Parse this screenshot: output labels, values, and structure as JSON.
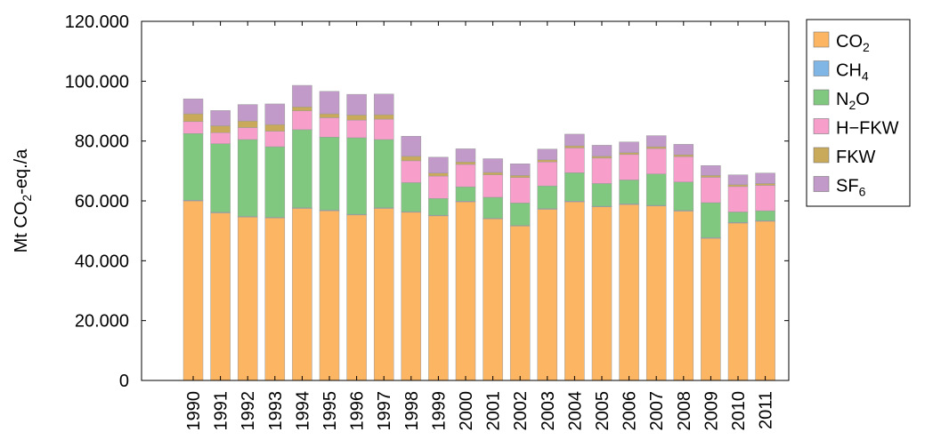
{
  "chart_data": {
    "type": "bar",
    "stacked": true,
    "title": "",
    "xlabel": "",
    "ylabel": "Mt CO",
    "ylabel_sub": "2",
    "ylabel_suffix": "-eq./a",
    "ylim": [
      0,
      120000
    ],
    "yticks": [
      0,
      20000,
      40000,
      60000,
      80000,
      100000,
      120000
    ],
    "ytick_labels": [
      "0",
      "20.000",
      "40.000",
      "60.000",
      "80.000",
      "100.000",
      "120.000"
    ],
    "grid": false,
    "legend_position": "outside-right",
    "categories": [
      "1990",
      "1991",
      "1992",
      "1993",
      "1994",
      "1995",
      "1996",
      "1997",
      "1998",
      "1999",
      "2000",
      "2001",
      "2002",
      "2003",
      "2004",
      "2005",
      "2006",
      "2007",
      "2008",
      "2009",
      "2010",
      "2011"
    ],
    "series": [
      {
        "name": "CO",
        "sub": "2",
        "suffix": "",
        "color": "#fcb663",
        "values": [
          60000,
          56000,
          54600,
          54300,
          57500,
          56700,
          55300,
          57500,
          56200,
          55000,
          59700,
          54000,
          51600,
          57200,
          59700,
          58000,
          58800,
          58300,
          56600,
          47500,
          52600,
          53200
        ]
      },
      {
        "name": "CH",
        "sub": "4",
        "suffix": "",
        "color": "#7fb6e6",
        "values": [
          200,
          200,
          200,
          200,
          200,
          200,
          200,
          200,
          200,
          200,
          200,
          200,
          200,
          200,
          200,
          200,
          200,
          200,
          200,
          200,
          200,
          200
        ]
      },
      {
        "name": "N",
        "sub": "2",
        "suffix": "O",
        "color": "#80c880",
        "values": [
          22300,
          22900,
          25700,
          23600,
          26100,
          24400,
          25600,
          22800,
          9700,
          5600,
          4800,
          7000,
          7500,
          7600,
          9500,
          7600,
          8000,
          10500,
          9500,
          11700,
          3500,
          3300
        ]
      },
      {
        "name": "H−FKW",
        "sub": "",
        "suffix": "",
        "color": "#f79ecb",
        "values": [
          4000,
          3700,
          4000,
          5200,
          6300,
          6500,
          5900,
          6800,
          7300,
          7500,
          7500,
          7500,
          8500,
          8000,
          8300,
          8500,
          8500,
          8500,
          8500,
          8500,
          8500,
          8500
        ]
      },
      {
        "name": "FKW",
        "sub": "",
        "suffix": "",
        "color": "#c8aa5a",
        "values": [
          2600,
          2300,
          2200,
          2200,
          1300,
          1300,
          1700,
          1500,
          1500,
          1000,
          800,
          800,
          700,
          700,
          700,
          600,
          600,
          600,
          600,
          600,
          600,
          600
        ]
      },
      {
        "name": "SF",
        "sub": "6",
        "suffix": "",
        "color": "#c29ac9",
        "values": [
          5000,
          5100,
          5500,
          6900,
          7200,
          7500,
          6900,
          6900,
          6700,
          5300,
          4400,
          4600,
          3900,
          3600,
          3900,
          3700,
          3600,
          3700,
          3500,
          3300,
          3300,
          3500
        ]
      }
    ]
  }
}
